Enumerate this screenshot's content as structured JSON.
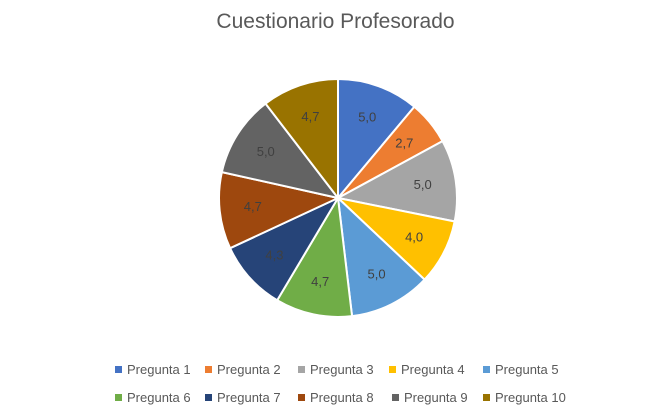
{
  "chart_data": {
    "type": "pie",
    "title": "Cuestionario Profesorado",
    "categories": [
      "Pregunta 1",
      "Pregunta 2",
      "Pregunta 3",
      "Pregunta 4",
      "Pregunta 5",
      "Pregunta 6",
      "Pregunta 7",
      "Pregunta 8",
      "Pregunta 9",
      "Pregunta 10"
    ],
    "values": [
      5.0,
      2.7,
      5.0,
      4.0,
      5.0,
      4.7,
      4.3,
      4.7,
      5.0,
      4.7
    ],
    "labels": [
      "5,0",
      "2,7",
      "5,0",
      "4,0",
      "5,0",
      "4,7",
      "4,3",
      "4,7",
      "5,0",
      "4,7"
    ],
    "colors": [
      "#4472C4",
      "#ED7D31",
      "#A5A5A5",
      "#FFC000",
      "#5B9BD5",
      "#70AD47",
      "#264478",
      "#9E480E",
      "#636363",
      "#997300"
    ],
    "legend_position": "bottom"
  }
}
